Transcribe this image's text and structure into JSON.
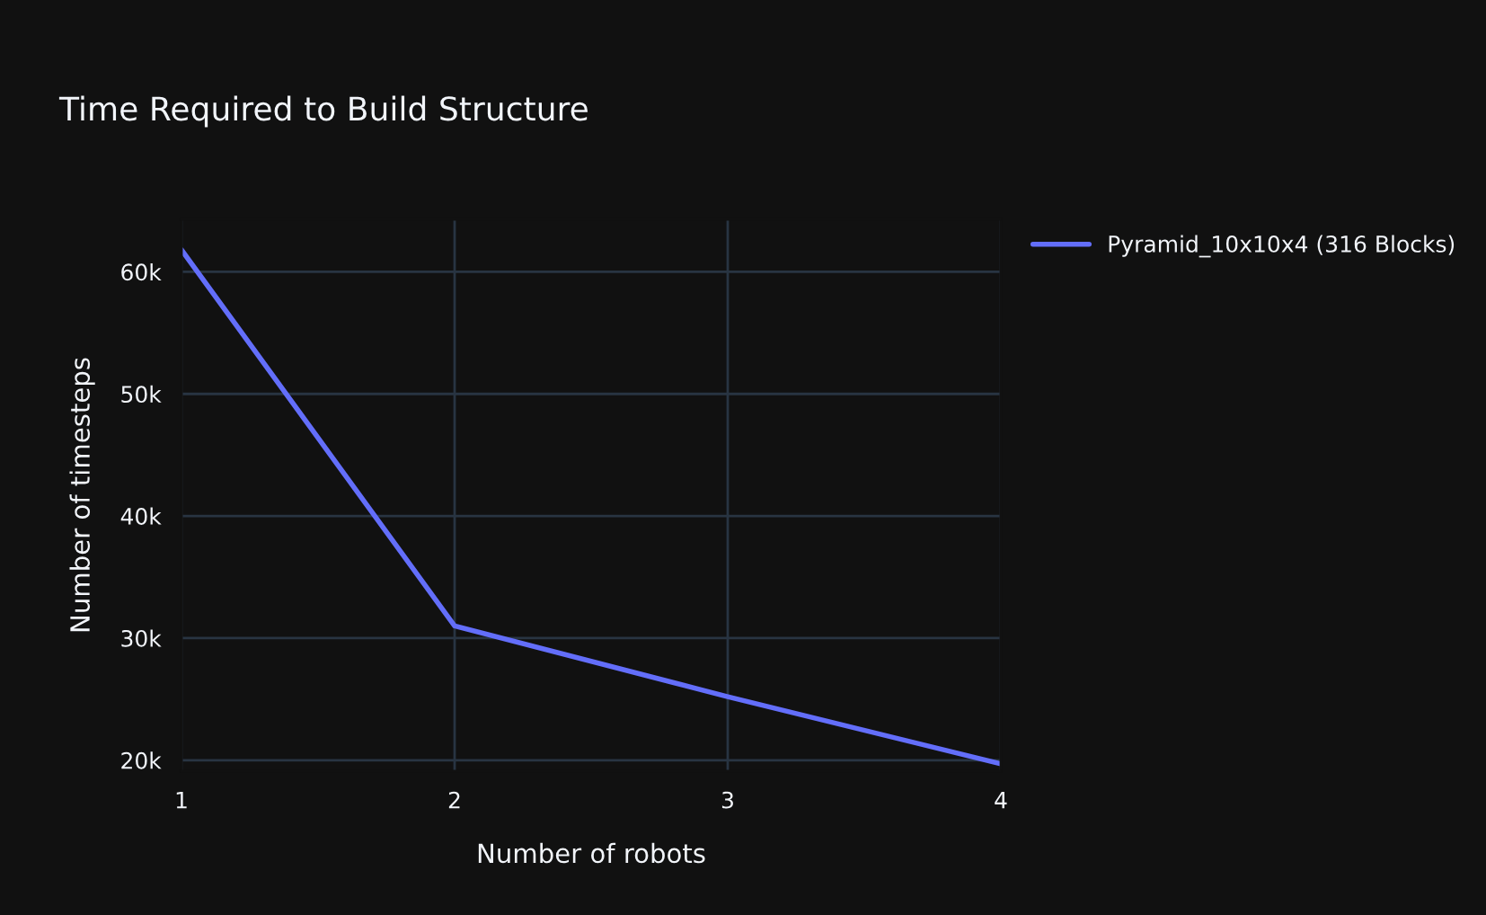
{
  "chart_data": {
    "type": "line",
    "title": "Time Required to Build Structure",
    "xlabel": "Number of robots",
    "ylabel": "Number of timesteps",
    "x": [
      1,
      2,
      3,
      4
    ],
    "series": [
      {
        "name": "Pyramid_10x10x4 (316 Blocks)",
        "color": "#636efa",
        "values": [
          61800,
          31000,
          25200,
          19700
        ]
      }
    ],
    "xlim": [
      1,
      4
    ],
    "xticks": [
      1,
      2,
      3,
      4
    ],
    "ylim": [
      19100,
      64300
    ],
    "yticks": [
      {
        "value": 20000,
        "label": "20k"
      },
      {
        "value": 30000,
        "label": "30k"
      },
      {
        "value": 40000,
        "label": "40k"
      },
      {
        "value": 50000,
        "label": "50k"
      },
      {
        "value": 60000,
        "label": "60k"
      }
    ],
    "grid": true,
    "legend": "top right",
    "marker": "none",
    "line_style": "solid"
  }
}
